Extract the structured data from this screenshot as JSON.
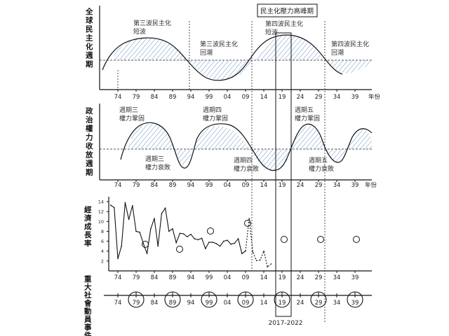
{
  "peak_box_label": "民主化壓力高峰期",
  "peak_range_label": "2017-2022",
  "x_ticks": [
    "74",
    "79",
    "84",
    "89",
    "94",
    "99",
    "04",
    "09",
    "14",
    "19",
    "24",
    "29",
    "34",
    "39"
  ],
  "year_unit": "年份",
  "panel1": {
    "ylabel": "全球民主化週期",
    "notes": [
      {
        "l1": "第三波民主化",
        "l2": "短波"
      },
      {
        "l1": "第三波民主化",
        "l2": "回潮"
      },
      {
        "l1": "第四波民主化",
        "l2": "短波"
      },
      {
        "l1": "第四波民主化",
        "l2": "回潮"
      }
    ]
  },
  "panel2": {
    "ylabel": "政治權力收放週期",
    "notes": [
      {
        "l1": "週期三",
        "l2": "權力鞏固"
      },
      {
        "l1": "週期三",
        "l2": "權力衰敗"
      },
      {
        "l1": "週期四",
        "l2": "權力鞏固"
      },
      {
        "l1": "週期四",
        "l2": "權力衰敗"
      },
      {
        "l1": "週期五",
        "l2": "權力鞏固"
      },
      {
        "l1": "週期五",
        "l2": "權力衰敗"
      }
    ]
  },
  "panel3": {
    "ylabel": "經濟成長率",
    "y_ticks": [
      "14",
      "12",
      "10",
      "8",
      "6",
      "4",
      "2"
    ]
  },
  "panel4": {
    "ylabel": "重大社會動員事件",
    "x_ticks": [
      "74",
      "79",
      "84",
      "89",
      "94",
      "99",
      "04",
      "09",
      "14",
      "19",
      "24",
      "29",
      "34",
      "39"
    ],
    "circled": [
      "79",
      "89",
      "99",
      "09",
      "19",
      "29",
      "39"
    ]
  },
  "chart_data": {
    "type": "line",
    "title": "",
    "xlabel": "年份",
    "ylabel": "經濟成長率",
    "ylim": [
      0,
      15
    ],
    "x": [
      1972,
      1973,
      1974,
      1975,
      1976,
      1977,
      1978,
      1979,
      1980,
      1981,
      1982,
      1983,
      1984,
      1985,
      1986,
      1987,
      1988,
      1989,
      1990,
      1991,
      1992,
      1993,
      1994,
      1995,
      1996,
      1997,
      1998,
      1999,
      2000,
      2001,
      2002,
      2003,
      2004,
      2005,
      2006,
      2007,
      2008,
      2009,
      2010,
      2011,
      2012,
      2013,
      2014,
      2015,
      2016
    ],
    "series": [
      {
        "values": [
          13.3,
          12.8,
          2.5,
          5.0,
          13.8,
          10.4,
          13.2,
          8.0,
          7.8,
          5.5,
          3.5,
          8.5,
          10.6,
          5.0,
          11.6,
          12.7,
          8.0,
          8.5,
          5.7,
          7.6,
          7.5,
          6.9,
          7.4,
          6.5,
          6.3,
          6.6,
          4.5,
          5.8,
          5.8,
          5.5,
          5.0,
          6.0,
          6.2,
          5.4,
          5.6,
          6.5,
          3.5,
          4.0,
          10.6,
          3.8,
          2.1,
          2.2,
          4.0,
          0.8,
          1.4
        ],
        "name": ""
      }
    ],
    "display_segment_years": [
      1972,
      2016
    ]
  }
}
